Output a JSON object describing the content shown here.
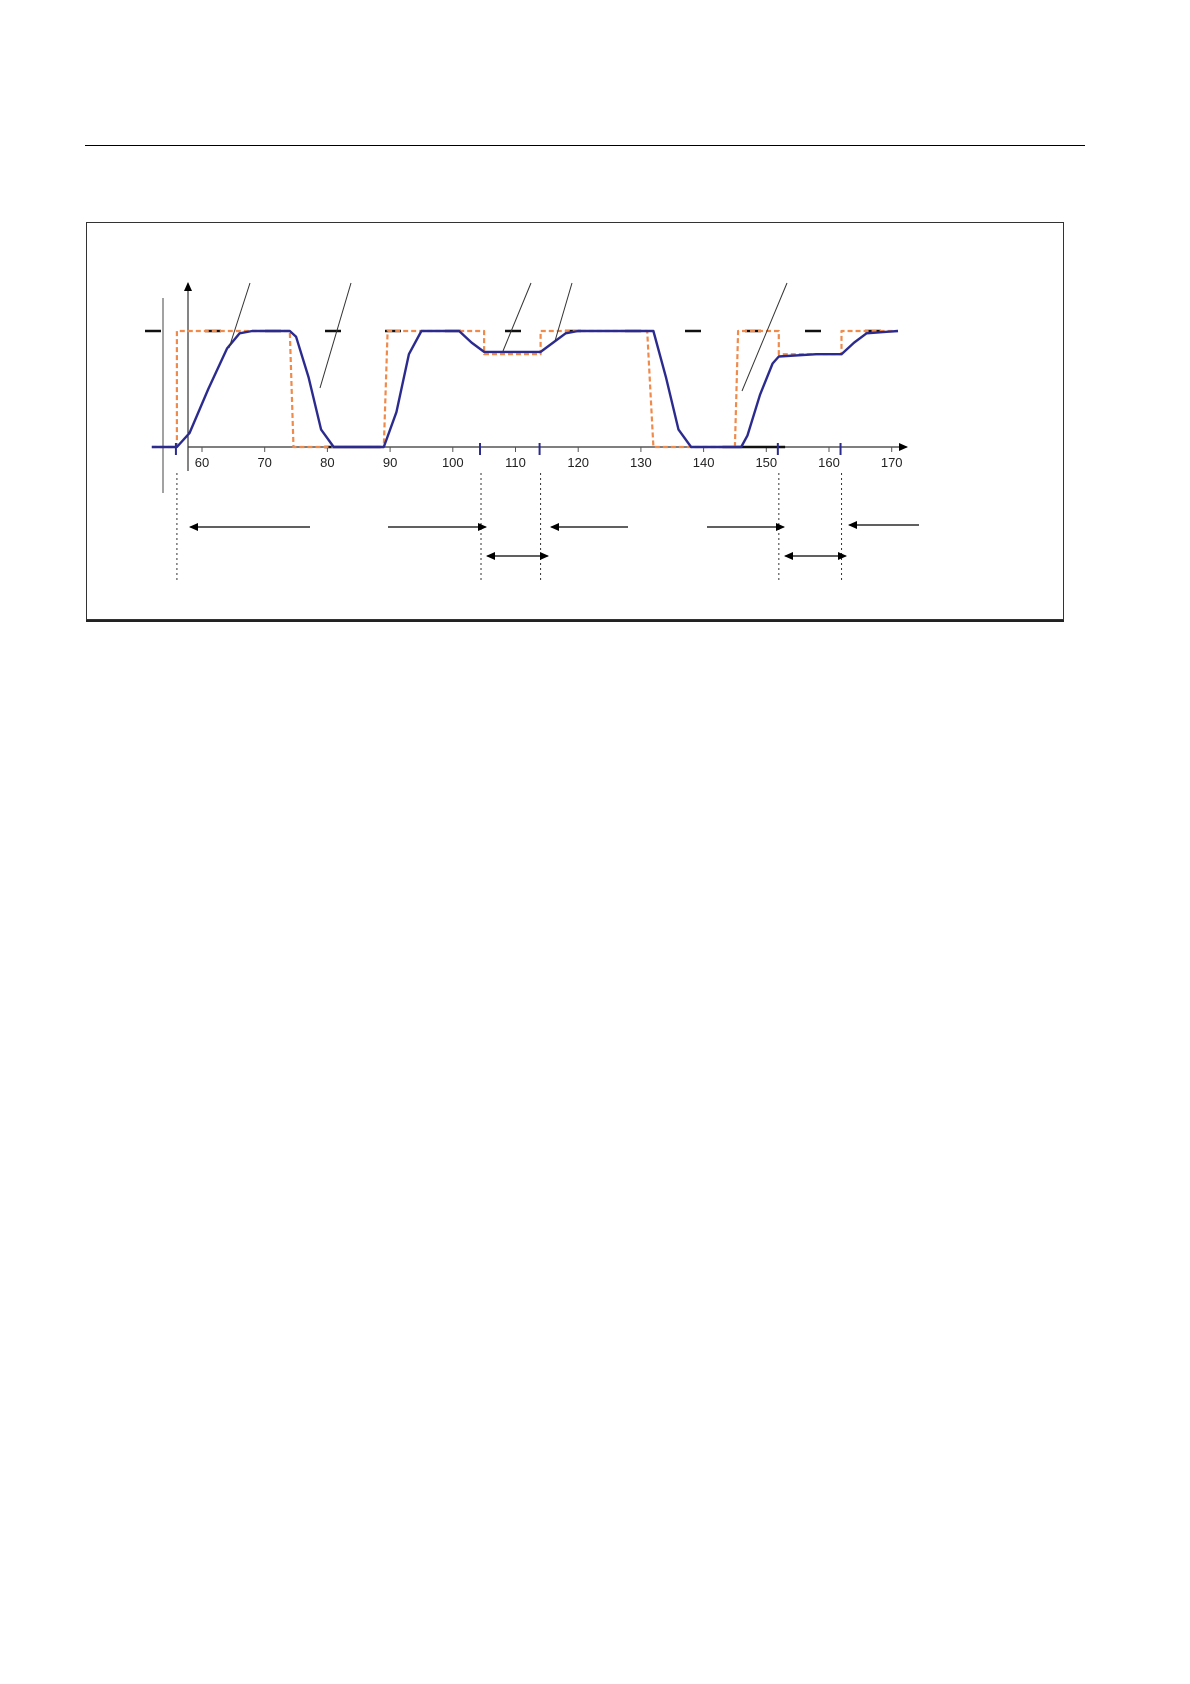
{
  "chart_data": {
    "type": "line",
    "title": "",
    "xlabel": "",
    "ylabel": "",
    "xlim": [
      56,
      175
    ],
    "ylim": [
      -0.1,
      1.15
    ],
    "x_ticks": [
      60,
      70,
      80,
      90,
      100,
      110,
      120,
      130,
      140,
      150,
      160,
      170
    ],
    "x_tick_labels": [
      "60",
      "70",
      "80",
      "90",
      "100",
      "110",
      "120",
      "130",
      "140",
      "150",
      "160",
      "170"
    ],
    "series": [
      {
        "style": "dashed",
        "color": "#f08a4b",
        "x": [
          52,
          56,
          56,
          74,
          74.6,
          89,
          89.6,
          105,
          105,
          114,
          114,
          131,
          132,
          145,
          145.5,
          152,
          152,
          162,
          162,
          171
        ],
        "y": [
          0,
          0,
          1,
          1,
          0,
          0,
          1,
          1,
          0.8,
          0.8,
          1,
          1,
          0,
          0,
          1,
          1,
          0.8,
          0.8,
          1,
          1
        ]
      },
      {
        "style": "solid",
        "color": "#2b2b8f",
        "x": [
          52,
          56,
          58,
          61,
          64,
          66,
          68,
          74,
          75,
          77,
          79,
          81,
          89,
          91,
          93,
          95,
          101,
          103,
          105,
          114,
          116,
          118,
          120,
          132,
          134,
          136,
          138,
          146,
          147,
          149,
          151,
          152,
          158,
          162,
          164,
          166,
          171
        ],
        "y": [
          0,
          0,
          0.12,
          0.5,
          0.85,
          0.98,
          1,
          1,
          0.95,
          0.6,
          0.15,
          0,
          0,
          0.3,
          0.8,
          1,
          1,
          0.9,
          0.82,
          0.82,
          0.9,
          0.98,
          1,
          1,
          0.6,
          0.15,
          0,
          0,
          0.1,
          0.45,
          0.72,
          0.78,
          0.8,
          0.8,
          0.9,
          0.98,
          1
        ]
      }
    ]
  },
  "annotations": {
    "dash_level_high": 1,
    "dash_level_low": 0,
    "dotted_markers_x": [
      56,
      104.5,
      114,
      152,
      162
    ]
  }
}
